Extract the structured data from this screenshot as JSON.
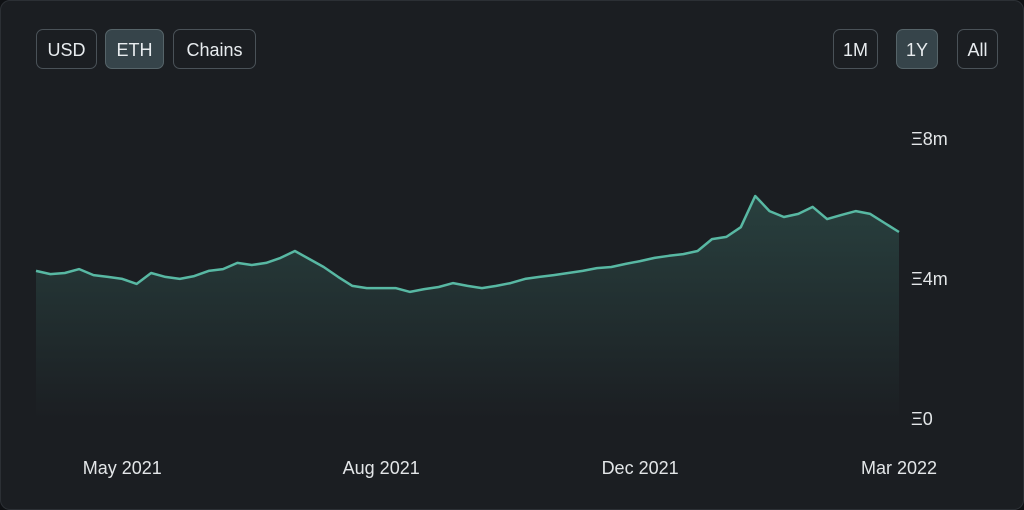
{
  "controls": {
    "currency": [
      "USD",
      "ETH",
      "Chains"
    ],
    "range": [
      "1M",
      "1Y",
      "All"
    ]
  },
  "chart_data": {
    "type": "area",
    "color": "#58b8a3",
    "grid": false,
    "categories": [
      null,
      null,
      null,
      null,
      null,
      null,
      "May 2021",
      null,
      null,
      null,
      null,
      null,
      null,
      null,
      null,
      null,
      null,
      null,
      null,
      null,
      null,
      null,
      null,
      null,
      "Aug 2021",
      null,
      null,
      null,
      null,
      null,
      null,
      null,
      null,
      null,
      null,
      null,
      null,
      null,
      null,
      null,
      null,
      null,
      "Dec 2021",
      null,
      null,
      null,
      null,
      null,
      null,
      null,
      null,
      null,
      null,
      null,
      null,
      null,
      null,
      null,
      null,
      null,
      "Mar 2022"
    ],
    "values": [
      4.26,
      4.17,
      4.2,
      4.31,
      4.14,
      4.09,
      4.03,
      3.89,
      4.2,
      4.09,
      4.03,
      4.11,
      4.26,
      4.31,
      4.49,
      4.43,
      4.49,
      4.63,
      4.83,
      4.6,
      4.37,
      4.09,
      3.83,
      3.77,
      3.77,
      3.77,
      3.66,
      3.74,
      3.8,
      3.91,
      3.83,
      3.77,
      3.83,
      3.91,
      4.03,
      4.09,
      4.14,
      4.2,
      4.26,
      4.34,
      4.37,
      4.46,
      4.54,
      4.63,
      4.69,
      4.74,
      4.83,
      5.17,
      5.23,
      5.51,
      6.4,
      5.97,
      5.8,
      5.89,
      6.09,
      5.74,
      5.86,
      5.97,
      5.89,
      5.63,
      5.37
    ],
    "ylim": [
      0,
      9
    ],
    "yticks": [
      {
        "value": 0,
        "label": "Ξ0"
      },
      {
        "value": 4,
        "label": "Ξ4m"
      },
      {
        "value": 8,
        "label": "Ξ8m"
      }
    ]
  }
}
